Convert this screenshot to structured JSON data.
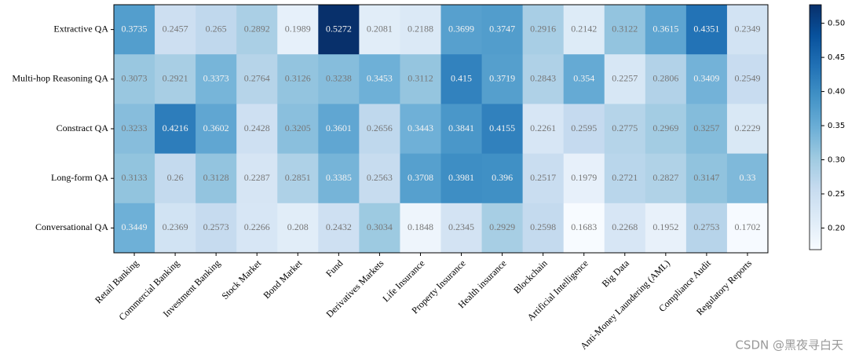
{
  "chart_data": {
    "type": "heatmap",
    "rows": [
      "Extractive QA",
      "Multi-hop Reasoning QA",
      "Constract QA",
      "Long-form QA",
      "Conversational QA"
    ],
    "categories": [
      "Retail Banking",
      "Commercial Banking",
      "Investment Banking",
      "Stock Market",
      "Bond Market",
      "Fund",
      "Derivatives Markets",
      "Life Insurance",
      "Property Insurance",
      "Health insurance",
      "Blockchain",
      "Artificial Intelligence",
      "Big Data",
      "Anti-Money Laundering (AML)",
      "Compliance Audit",
      "Regulatory Reports"
    ],
    "values": [
      [
        0.3735,
        0.2457,
        0.265,
        0.2892,
        0.1989,
        0.5272,
        0.2081,
        0.2188,
        0.3699,
        0.3747,
        0.2916,
        0.2142,
        0.3122,
        0.3615,
        0.4351,
        0.2349
      ],
      [
        0.3073,
        0.2921,
        0.3373,
        0.2764,
        0.3126,
        0.3238,
        0.3453,
        0.3112,
        0.415,
        0.3719,
        0.2843,
        0.354,
        0.2257,
        0.2806,
        0.3409,
        0.2549
      ],
      [
        0.3233,
        0.4216,
        0.3602,
        0.2428,
        0.3205,
        0.3601,
        0.2656,
        0.3443,
        0.3841,
        0.4155,
        0.2261,
        0.2595,
        0.2775,
        0.2969,
        0.3257,
        0.2229
      ],
      [
        0.3133,
        0.26,
        0.3128,
        0.2287,
        0.2851,
        0.3385,
        0.2563,
        0.3708,
        0.3981,
        0.396,
        0.2517,
        0.1979,
        0.2721,
        0.2827,
        0.3147,
        0.33
      ],
      [
        0.3449,
        0.2369,
        0.2573,
        0.2266,
        0.208,
        0.2432,
        0.3034,
        0.1848,
        0.2345,
        0.2929,
        0.2598,
        0.1683,
        0.2268,
        0.1952,
        0.2753,
        0.1702
      ]
    ],
    "colormap": "Blues",
    "clim": [
      0.1683,
      0.5272
    ],
    "cticks": [
      {
        "value": 0.2,
        "label": "0.20"
      },
      {
        "value": 0.25,
        "label": "0.25"
      },
      {
        "value": 0.3,
        "label": "0.30"
      },
      {
        "value": 0.35,
        "label": "0.35"
      },
      {
        "value": 0.4,
        "label": "0.40"
      },
      {
        "value": 0.45,
        "label": "0.45"
      },
      {
        "value": 0.5,
        "label": "0.50"
      }
    ]
  },
  "watermark": "CSDN @黑夜寻白天"
}
